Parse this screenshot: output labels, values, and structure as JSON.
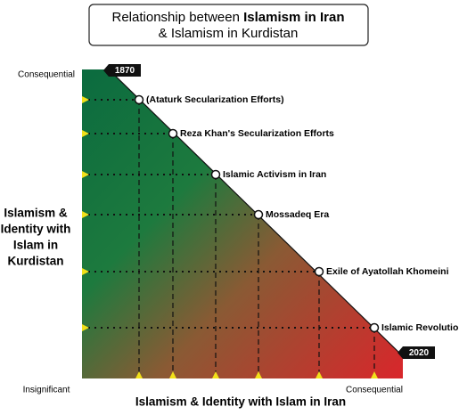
{
  "title": {
    "text": "Relationship between ",
    "bold": "Islamism in Iran",
    "line2": "& Islamism in Kurdistan"
  },
  "y_axis": {
    "title": [
      "Islamism &",
      "Identity with",
      "Islam in",
      "Kurdistan"
    ],
    "top_label": "Consequential",
    "bottom_label": "Insignificant"
  },
  "x_axis": {
    "title": "Islamism & Identity with Islam in Iran",
    "right_label": "Consequential"
  },
  "start_year": "1870",
  "end_year": "2020",
  "events": [
    "(Ataturk Secularization Efforts)",
    "Reza Khan's Secularization Efforts",
    "Islamic Activism in Iran",
    "Mossadeq Era",
    "Exile of Ayatollah Khomeini",
    "Islamic Revolution"
  ]
}
